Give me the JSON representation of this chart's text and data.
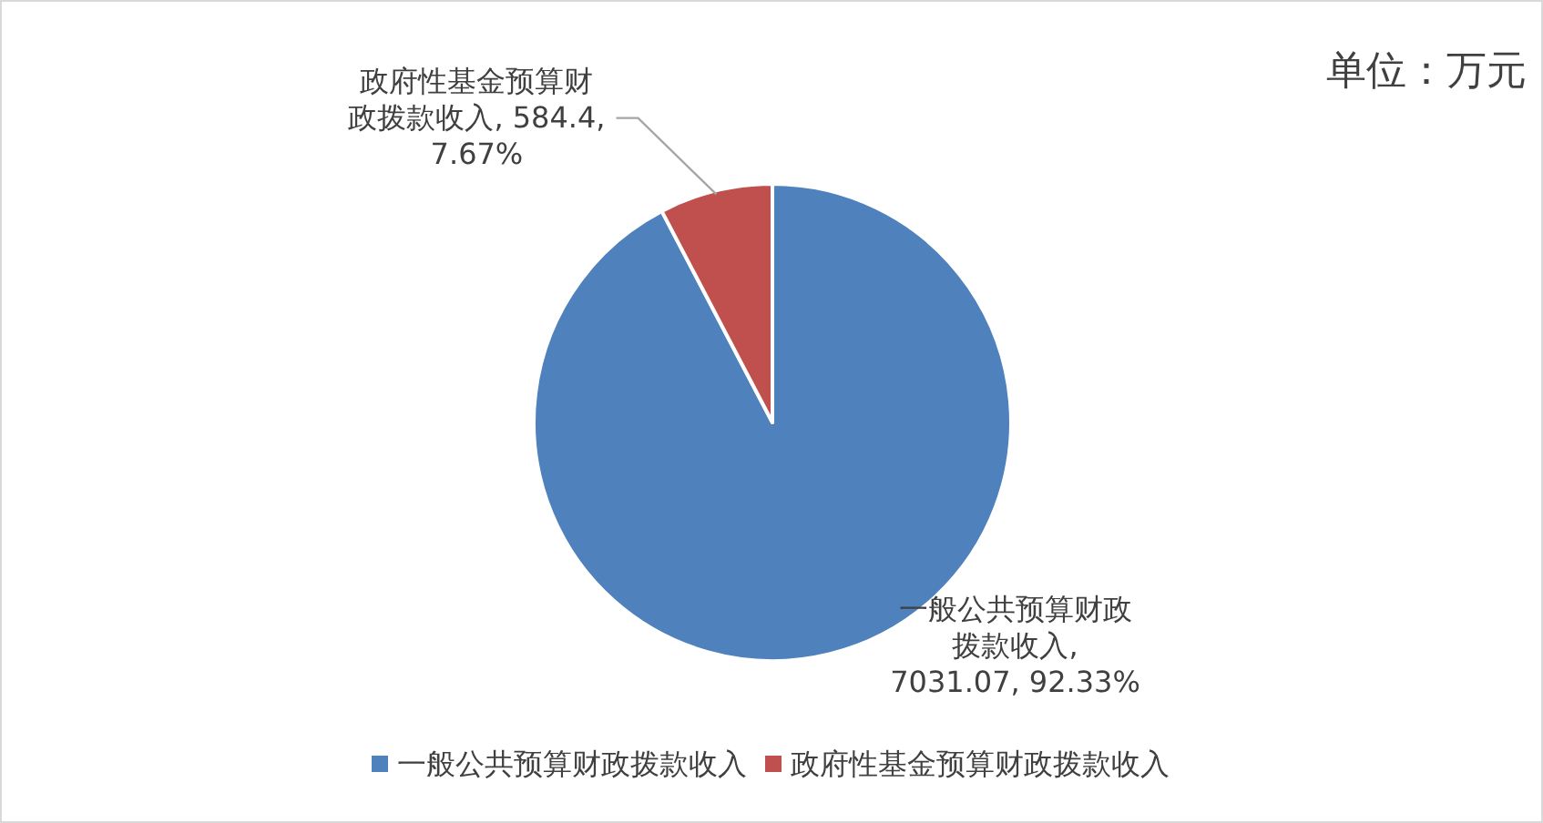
{
  "chart_data": {
    "type": "pie",
    "categories": [
      "一般公共预算财政拨款收入",
      "政府性基金预算财政拨款收入"
    ],
    "values": [
      7031.07,
      584.4
    ],
    "value_labels": [
      "一般公共预算财政拨款收入, 7031.07, 92.33%",
      "政府性基金预算财政拨款收入, 584.4, 7.67%"
    ],
    "colors": [
      "#4f81bd",
      "#c0504d"
    ],
    "annotations": [
      "单位：万元"
    ],
    "legend": "bottom"
  }
}
